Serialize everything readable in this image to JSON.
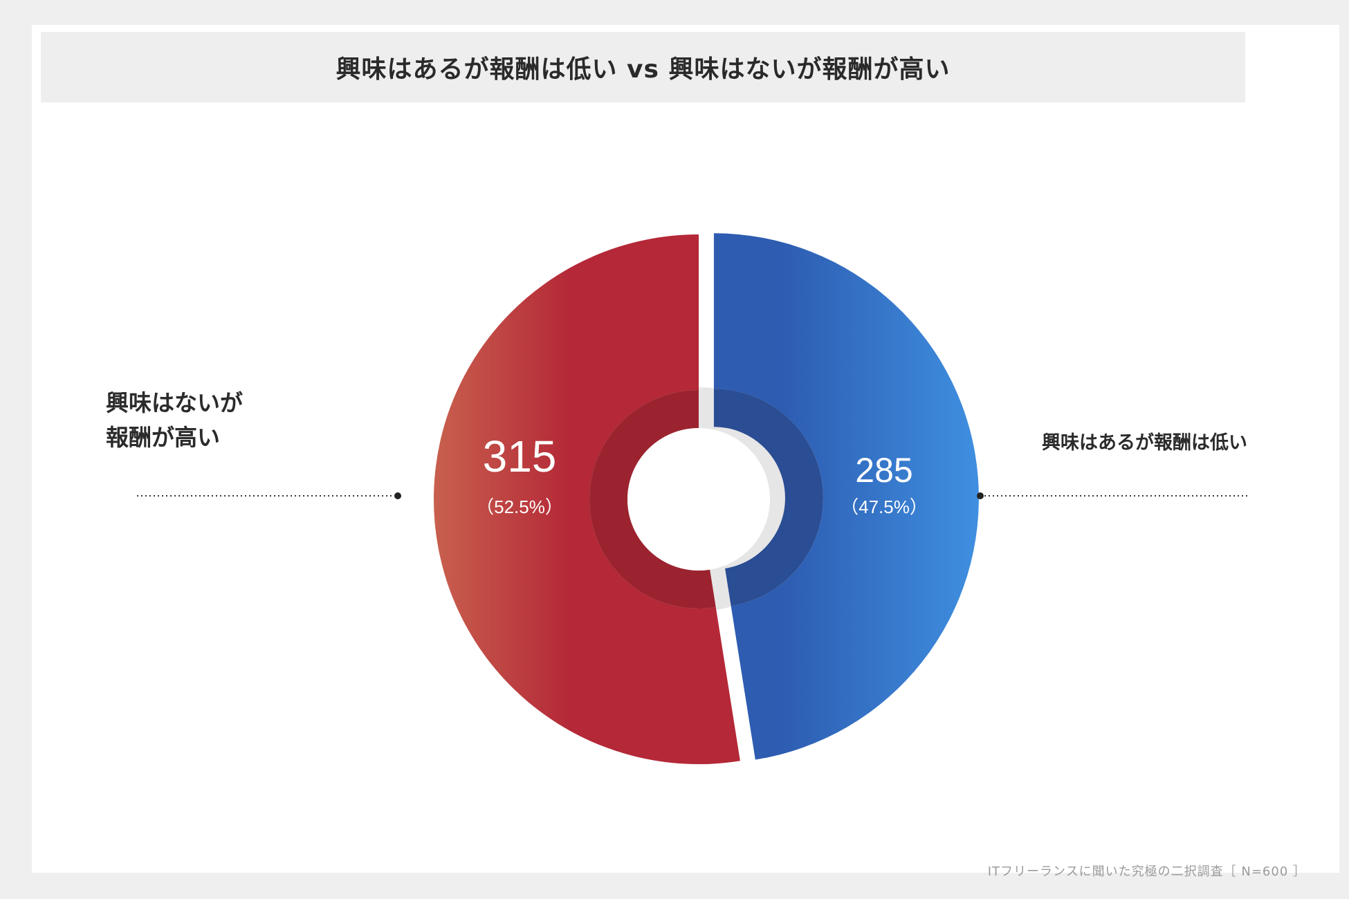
{
  "title": "興味はあるが報酬は低い vs 興味はないが報酬が高い",
  "footer": "ITフリーランスに聞いた究極の二択調査［ N=600 ］",
  "colors": {
    "page_background": "#efefef",
    "card_background": "#ffffff",
    "title_background": "#eeeeee",
    "red_light": "#c8604e",
    "red_dark": "#b42837",
    "blue_dark": "#2d5cb1",
    "blue_light": "#3f8fe0",
    "center_ring_red": "#9b232f",
    "center_ring_blue": "#2a4d93",
    "gap": "#e6e6e6"
  },
  "chart_data": {
    "type": "pie",
    "variant": "donut-exploded",
    "total": 600,
    "slices": [
      {
        "label_lines": [
          "興味はないが",
          "報酬が高い"
        ],
        "value": 315,
        "value_text": "315",
        "percent": 52.5,
        "percent_text": "（52.5%）",
        "color_gradient": [
          "#c8604e",
          "#b42837"
        ]
      },
      {
        "label_lines": [
          "興味はあるが報酬は低い"
        ],
        "value": 285,
        "value_text": "285",
        "percent": 47.5,
        "percent_text": "（47.5%）",
        "color_gradient": [
          "#2d5cb1",
          "#3f8fe0"
        ]
      }
    ]
  }
}
